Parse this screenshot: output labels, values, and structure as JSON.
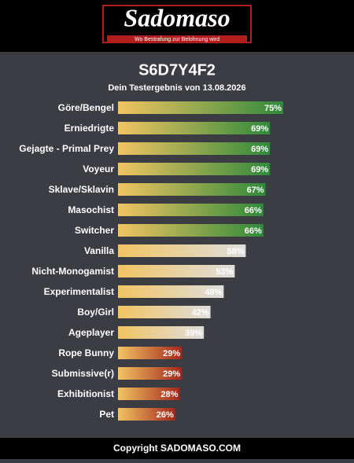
{
  "header": {
    "logo": "Sadomaso",
    "tagline": "Wo Bestrafung zur Belohnung wird"
  },
  "chart_data": {
    "type": "bar",
    "title": "S6D7Y4F2",
    "subtitle": "Dein Testergebnis von 13.08.2026",
    "categories": [
      "Göre/Bengel",
      "Erniedrigte",
      "Gejagte - Primal Prey",
      "Voyeur",
      "Sklave/Sklavin",
      "Masochist",
      "Switcher",
      "Vanilla",
      "Nicht-Monogamist",
      "Experimentalist",
      "Boy/Girl",
      "Ageplayer",
      "Rope Bunny",
      "Submissive(r)",
      "Exhibitionist",
      "Pet"
    ],
    "values": [
      75,
      69,
      69,
      69,
      67,
      66,
      66,
      58,
      53,
      48,
      42,
      39,
      29,
      29,
      28,
      26
    ],
    "value_labels": [
      "75%",
      "69%",
      "69%",
      "69%",
      "67%",
      "66%",
      "66%",
      "58%",
      "53%",
      "48%",
      "42%",
      "39%",
      "29%",
      "29%",
      "28%",
      "26%"
    ],
    "colors": [
      "#2f8a3b",
      "#2f8a3b",
      "#2f8a3b",
      "#2f8a3b",
      "#2f8a3b",
      "#2f8a3b",
      "#2f8a3b",
      "#dedede",
      "#dedede",
      "#dedede",
      "#dedede",
      "#dedede",
      "#a3261c",
      "#a3261c",
      "#a3261c",
      "#a3261c"
    ]
  },
  "footer": "Copyright SADOMASO.COM"
}
